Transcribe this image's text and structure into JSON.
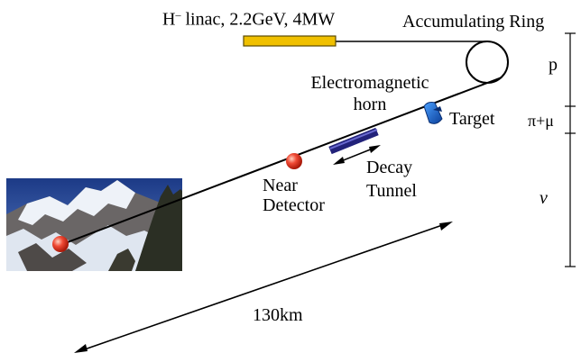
{
  "labels": {
    "linac_prefix": "H",
    "linac_sup": "–",
    "linac_rest": " linac, 2.2GeV, 4MW",
    "ring": "Accumulating Ring",
    "horn_line1": "Electromagnetic",
    "horn_line2": "horn",
    "target": "Target",
    "near_line1": "Near",
    "near_line2": "Detector",
    "decay_line1": "Decay",
    "decay_line2": "Tunnel",
    "distance": "130km",
    "scale_p": "p",
    "scale_pimu": "π+μ",
    "scale_nu": "ν"
  },
  "colors": {
    "linac": "#f0c000",
    "beamline": "#000000",
    "horn": "#1f4fa8",
    "decay_tunnel": "#22227a",
    "detector": "#e23a2a",
    "sky": "#2a4fa0",
    "snow": "#e9eef6",
    "rock": "#5d5a5a"
  },
  "icons": {
    "horn": "horn-icon",
    "near_detector": "near-detector-icon",
    "far_detector": "far-detector-icon",
    "photo": "mountain-photo"
  }
}
